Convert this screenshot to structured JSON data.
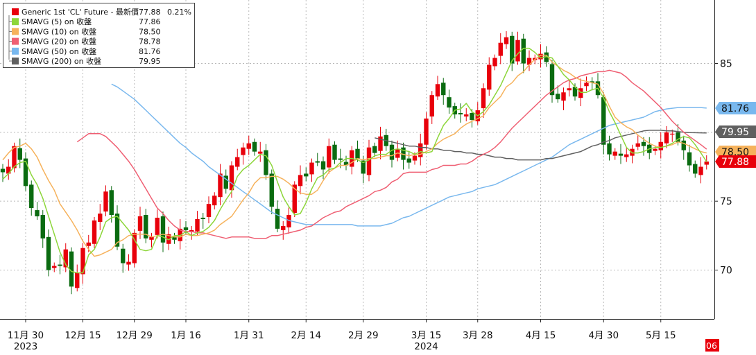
{
  "chart_data": {
    "type": "candlestick",
    "title": "Generic 1st 'CL' Future",
    "colors": {
      "up": "#e8000b",
      "down": "#0a6b10",
      "sma5": "#8dd63a",
      "sma10": "#f6b25c",
      "sma20": "#ef5f73",
      "sma50": "#79b8ee",
      "sma200": "#606060",
      "grid": "#b9b9b9",
      "last_price_bg": "#e8000b"
    },
    "legend": {
      "placement": "top-left",
      "entries": [
        {
          "key": "price",
          "label": "Generic 1st 'CL' Future - 最新價",
          "value": "77.88",
          "change": "0.21%",
          "color": "#e8000b"
        },
        {
          "key": "sma5",
          "label": "SMAVG (5)  on 收盤",
          "value": "77.86",
          "color": "#8dd63a"
        },
        {
          "key": "sma10",
          "label": "SMAVG (10)  on 收盤",
          "value": "78.50",
          "color": "#f6b25c"
        },
        {
          "key": "sma20",
          "label": "SMAVG (20)  on 收盤",
          "value": "78.78",
          "color": "#ef5f73"
        },
        {
          "key": "sma50",
          "label": "SMAVG (50)  on 收盤",
          "value": "81.76",
          "color": "#79b8ee"
        },
        {
          "key": "sma200",
          "label": "SMAVG (200)  on 收盤",
          "value": "79.95",
          "color": "#606060"
        }
      ]
    },
    "y_axis": {
      "position": "right",
      "range": [
        65.5,
        89.5
      ],
      "ticks": [
        70,
        75,
        80,
        85
      ],
      "tick_labels": [
        "70",
        "75",
        "",
        "85"
      ]
    },
    "x_axis": {
      "ticks": [
        {
          "i": 4,
          "label": "11月 30",
          "year": "2023"
        },
        {
          "i": 14,
          "label": "12月 15",
          "year": ""
        },
        {
          "i": 23,
          "label": "12月 29",
          "year": ""
        },
        {
          "i": 32,
          "label": "1月 16",
          "year": ""
        },
        {
          "i": 43,
          "label": "1月 31",
          "year": ""
        },
        {
          "i": 53,
          "label": "2月 14",
          "year": ""
        },
        {
          "i": 63,
          "label": "2月 29",
          "year": ""
        },
        {
          "i": 74,
          "label": "3月 15",
          "year": "2024"
        },
        {
          "i": 83,
          "label": "3月 28",
          "year": ""
        },
        {
          "i": 94,
          "label": "4月 15",
          "year": ""
        },
        {
          "i": 105,
          "label": "4月 30",
          "year": ""
        },
        {
          "i": 115,
          "label": "5月 15",
          "year": ""
        }
      ],
      "corner_label": "06"
    },
    "price_labels": [
      {
        "key": "sma50",
        "text": "81.76",
        "value": 81.76
      },
      {
        "key": "sma200",
        "text": "79.95",
        "value": 79.95
      },
      {
        "key": "sma10",
        "text": "78.50",
        "value": 78.5
      },
      {
        "key": "price",
        "text": "77.88",
        "value": 77.88
      }
    ],
    "closes": [
      77.1,
      77.5,
      79.0,
      78.0,
      76.1,
      74.5,
      73.9,
      72.3,
      70.0,
      70.3,
      70.3,
      71.5,
      68.8,
      69.8,
      71.6,
      72.0,
      73.6,
      74.1,
      75.7,
      74.0,
      71.7,
      70.5,
      70.6,
      72.7,
      73.9,
      72.3,
      72.4,
      73.8,
      72.0,
      72.6,
      72.2,
      73.0,
      72.9,
      72.9,
      73.7,
      73.7,
      74.8,
      75.4,
      77.0,
      75.9,
      77.6,
      78.2,
      78.9,
      79.2,
      78.6,
      78.6,
      76.9,
      74.6,
      73.0,
      73.2,
      74.0,
      76.2,
      76.9,
      76.8,
      77.8,
      77.8,
      77.3,
      79.0,
      78.0,
      78.0,
      77.6,
      78.7,
      78.1,
      77.0,
      78.9,
      78.5,
      79.7,
      79.0,
      78.0,
      78.8,
      78.0,
      77.8,
      78.3,
      79.2,
      81.0,
      82.7,
      83.5,
      82.7,
      81.8,
      81.3,
      81.3,
      81.3,
      80.9,
      81.6,
      83.2,
      84.9,
      85.4,
      86.5,
      86.9,
      85.0,
      86.7,
      85.0,
      85.4,
      85.4,
      85.7,
      85.1,
      82.7,
      82.4,
      82.9,
      83.2,
      82.6,
      83.2,
      83.6,
      83.6,
      82.7,
      79.1,
      78.4,
      78.6,
      78.3,
      78.4,
      78.8,
      79.2,
      79.0,
      78.5,
      78.8,
      79.3,
      80.0,
      79.9,
      79.3,
      78.7,
      77.6,
      77.0,
      77.5,
      77.88
    ],
    "sma5": [
      76.6,
      77.0,
      77.5,
      77.8,
      77.9,
      76.9,
      76.2,
      75.2,
      73.9,
      72.6,
      71.3,
      70.4,
      69.9,
      69.8,
      69.8,
      71.1,
      71.5,
      72.4,
      73.5,
      73.8,
      73.9,
      73.4,
      72.9,
      72.2,
      71.5,
      71.4,
      71.5,
      72.5,
      72.4,
      72.2,
      72.5,
      72.5,
      72.8,
      72.5,
      72.7,
      72.8,
      73.1,
      73.6,
      74.4,
      75.1,
      75.7,
      76.8,
      77.3,
      77.6,
      78.0,
      78.4,
      78.3,
      77.6,
      76.4,
      75.3,
      74.6,
      74.0,
      74.1,
      74.9,
      75.9,
      76.7,
      76.9,
      77.3,
      77.4,
      77.8,
      78.1,
      78.1,
      78.0,
      77.8,
      78.0,
      78.3,
      78.4,
      78.4,
      78.7,
      78.8,
      78.7,
      78.6,
      78.4,
      78.6,
      78.5,
      78.6,
      79.6,
      80.5,
      81.0,
      81.6,
      81.7,
      82.1,
      81.5,
      81.2,
      81.5,
      82.0,
      82.7,
      83.4,
      84.3,
      85.2,
      85.7,
      86.1,
      86.1,
      85.8,
      85.4,
      85.5,
      85.4,
      84.8,
      84.2,
      83.8,
      83.3,
      82.9,
      82.9,
      83.1,
      83.2,
      82.5,
      81.5,
      80.7,
      79.8,
      78.9,
      78.5,
      78.5,
      78.6,
      78.8,
      78.9,
      78.9,
      79.0,
      79.2,
      79.5,
      79.7,
      79.6,
      79.1,
      78.5,
      77.86
    ],
    "sma10": [
      78.0,
      78.5,
      78.9,
      79.0,
      79.2,
      78.8,
      78.2,
      77.3,
      76.5,
      75.8,
      74.8,
      74.2,
      73.6,
      72.9,
      72.1,
      71.5,
      71.0,
      71.1,
      71.3,
      71.5,
      72.0,
      72.2,
      72.5,
      72.6,
      72.6,
      72.6,
      72.4,
      72.5,
      72.6,
      72.5,
      72.4,
      72.4,
      72.6,
      72.5,
      72.5,
      72.6,
      72.7,
      72.9,
      73.3,
      73.6,
      73.9,
      74.5,
      75.1,
      75.6,
      76.3,
      76.7,
      76.7,
      76.8,
      76.8,
      76.6,
      76.3,
      75.9,
      75.6,
      75.5,
      75.5,
      75.8,
      76.5,
      77.1,
      77.4,
      77.6,
      77.6,
      77.8,
      78.1,
      78.0,
      78.1,
      78.1,
      78.2,
      78.3,
      78.3,
      78.5,
      78.4,
      78.3,
      78.4,
      78.4,
      78.6,
      78.8,
      79.2,
      79.5,
      79.7,
      79.9,
      80.3,
      80.6,
      80.8,
      81.0,
      81.2,
      81.8,
      82.2,
      82.6,
      83.3,
      83.6,
      84.1,
      84.4,
      84.9,
      85.3,
      85.6,
      85.6,
      85.1,
      84.8,
      84.5,
      84.3,
      84.0,
      83.8,
      83.7,
      83.6,
      83.5,
      82.8,
      81.9,
      81.1,
      80.7,
      80.4,
      80.2,
      79.8,
      79.5,
      79.2,
      79.0,
      78.9,
      79.0,
      79.1,
      79.3,
      79.2,
      79.0,
      78.8,
      78.6,
      78.5
    ],
    "sma20": [
      79.3,
      79.6,
      79.9,
      79.9,
      79.9,
      79.7,
      79.3,
      78.9,
      78.4,
      77.9,
      77.3,
      76.6,
      75.9,
      75.2,
      74.5,
      74.1,
      73.6,
      73.2,
      72.9,
      72.8,
      72.8,
      72.7,
      72.7,
      72.6,
      72.5,
      72.4,
      72.3,
      72.4,
      72.4,
      72.4,
      72.4,
      72.3,
      72.3,
      72.3,
      72.5,
      72.5,
      72.6,
      72.7,
      72.8,
      72.9,
      73.1,
      73.2,
      73.5,
      73.8,
      74.0,
      74.2,
      74.3,
      74.6,
      74.8,
      75.0,
      75.2,
      75.4,
      75.7,
      75.8,
      76.0,
      76.4,
      76.6,
      77.0,
      77.1,
      77.1,
      77.1,
      77.1,
      77.3,
      77.4,
      77.6,
      77.6,
      77.6,
      77.7,
      77.7,
      77.9,
      78.2,
      78.4,
      78.6,
      78.9,
      79.3,
      79.8,
      80.3,
      80.7,
      81.1,
      81.5,
      81.9,
      82.3,
      82.7,
      83.0,
      83.3,
      83.6,
      83.8,
      83.9,
      84.1,
      84.2,
      84.3,
      84.4,
      84.4,
      84.5,
      84.4,
      84.3,
      84.0,
      83.6,
      83.3,
      83.0,
      82.6,
      82.2,
      81.8,
      81.3,
      80.8,
      80.4,
      80.0,
      79.7,
      79.4,
      79.1,
      78.78
    ],
    "sma50": [
      83.5,
      83.3,
      83.0,
      82.7,
      82.4,
      82.0,
      81.6,
      81.2,
      80.8,
      80.4,
      80.0,
      79.6,
      79.2,
      78.9,
      78.5,
      78.2,
      77.9,
      77.5,
      77.2,
      76.9,
      76.6,
      76.3,
      76.0,
      75.7,
      75.4,
      75.1,
      74.8,
      74.5,
      74.2,
      74.0,
      73.8,
      73.6,
      73.5,
      73.4,
      73.3,
      73.3,
      73.3,
      73.3,
      73.3,
      73.3,
      73.3,
      73.3,
      73.3,
      73.2,
      73.2,
      73.2,
      73.2,
      73.2,
      73.3,
      73.4,
      73.6,
      73.8,
      73.9,
      74.1,
      74.3,
      74.5,
      74.7,
      74.9,
      75.1,
      75.3,
      75.4,
      75.5,
      75.6,
      75.7,
      75.9,
      76.0,
      76.1,
      76.2,
      76.4,
      76.6,
      76.8,
      77.0,
      77.2,
      77.4,
      77.6,
      77.8,
      78.0,
      78.2,
      78.5,
      78.8,
      79.1,
      79.3,
      79.5,
      79.7,
      79.9,
      80.1,
      80.3,
      80.5,
      80.6,
      80.7,
      80.8,
      80.9,
      81.0,
      81.1,
      81.3,
      81.5,
      81.6,
      81.7,
      81.75,
      81.8,
      81.8,
      81.8,
      81.8,
      81.8,
      81.76
    ],
    "sma200": [
      79.6,
      79.5,
      79.4,
      79.3,
      79.2,
      79.1,
      79.0,
      79.0,
      78.9,
      78.9,
      78.8,
      78.8,
      78.7,
      78.7,
      78.6,
      78.6,
      78.5,
      78.5,
      78.4,
      78.4,
      78.3,
      78.2,
      78.2,
      78.1,
      78.1,
      78.0,
      78.0,
      78.0,
      78.0,
      78.0,
      78.1,
      78.1,
      78.2,
      78.3,
      78.4,
      78.5,
      78.6,
      78.8,
      79.0,
      79.1,
      79.3,
      79.4,
      79.6,
      79.7,
      79.8,
      79.9,
      80.0,
      80.1,
      80.15,
      80.15,
      80.15,
      80.1,
      80.1,
      80.05,
      80.0,
      79.98,
      79.97,
      79.96,
      79.95
    ]
  }
}
